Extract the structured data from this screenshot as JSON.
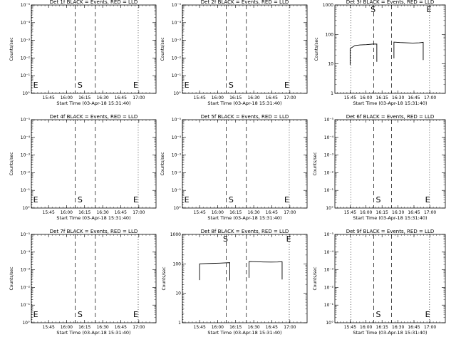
{
  "chart_data": [
    {
      "type": "line",
      "title": "Det 1f BLACK = Events, RED = LLD",
      "xlabel": "Start Time (03-Apr-18 15:31:40)",
      "ylabel": "Counts/sec",
      "scale": "log-small",
      "yticks": [
        "10°",
        "10⁻¹",
        "10⁻²",
        "10⁻³",
        "10⁻⁴",
        "10⁻⁵"
      ],
      "xticks": [
        "15:45",
        "16:00",
        "16:15",
        "16:30",
        "16:45",
        "17:00"
      ],
      "markers": [
        "E",
        "S",
        "E"
      ],
      "series": []
    },
    {
      "type": "line",
      "title": "Det 2f BLACK = Events, RED = LLD",
      "xlabel": "Start Time (03-Apr-18 15:31:40)",
      "ylabel": "Counts/sec",
      "scale": "log-small",
      "yticks": [
        "10°",
        "10⁻¹",
        "10⁻²",
        "10⁻³",
        "10⁻⁴",
        "10⁻⁵"
      ],
      "xticks": [
        "15:45",
        "16:00",
        "16:15",
        "16:30",
        "16:45",
        "17:00"
      ],
      "markers": [
        "E",
        "S",
        "E"
      ],
      "series": []
    },
    {
      "type": "line",
      "title": "Det 3f BLACK = Events, RED = LLD",
      "xlabel": "Start Time (03-Apr-18 15:31:40)",
      "ylabel": "Counts/sec",
      "scale": "log-large",
      "yticks": [
        "1",
        "10",
        "100",
        "1000"
      ],
      "xticks": [
        "15:45",
        "16:00",
        "16:15",
        "16:30",
        "16:45",
        "17:00"
      ],
      "markers": [
        "S",
        "E"
      ],
      "series": [
        {
          "segments": [
            [
              [
                0.28,
                33
              ],
              [
                0.58,
                42
              ],
              [
                0.9,
                44
              ],
              [
                1.3,
                45
              ],
              [
                1.7,
                47
              ],
              [
                1.95,
                47
              ]
            ],
            [
              [
                3.02,
                55
              ],
              [
                3.4,
                53
              ],
              [
                3.8,
                52
              ],
              [
                4.2,
                51
              ],
              [
                4.6,
                52
              ],
              [
                4.85,
                54
              ]
            ]
          ],
          "values": []
        }
      ]
    },
    {
      "type": "line",
      "title": "Det 4f BLACK = Events, RED = LLD",
      "xlabel": "Start Time (03-Apr-18 15:31:40)",
      "ylabel": "Counts/sec",
      "scale": "log-small",
      "yticks": [
        "10°",
        "10⁻¹",
        "10⁻²",
        "10⁻³",
        "10⁻⁴",
        "10⁻⁵"
      ],
      "xticks": [
        "15:45",
        "16:00",
        "16:15",
        "16:30",
        "16:45",
        "17:00"
      ],
      "markers": [
        "E",
        "S",
        "E"
      ],
      "series": []
    },
    {
      "type": "line",
      "title": "Det 5f BLACK = Events, RED = LLD",
      "xlabel": "Start Time (03-Apr-18 15:31:40)",
      "ylabel": "Counts/sec",
      "scale": "log-small",
      "yticks": [
        "10°",
        "10⁻¹",
        "10⁻²",
        "10⁻³",
        "10⁻⁴",
        "10⁻⁵"
      ],
      "xticks": [
        "15:45",
        "16:00",
        "16:15",
        "16:30",
        "16:45",
        "17:00"
      ],
      "markers": [
        "E",
        "S",
        "E"
      ],
      "series": []
    },
    {
      "type": "line",
      "title": "Det 6f BLACK = Events, RED = LLD",
      "xlabel": "Start Time (03-Apr-18 15:31:40)",
      "ylabel": "Counts/sec",
      "scale": "log-small",
      "yticks": [
        "10°",
        "10⁻¹",
        "10⁻²",
        "10⁻³",
        "10⁻⁴",
        "10⁻⁵"
      ],
      "xticks": [
        "15:45",
        "16:00",
        "16:15",
        "16:30",
        "16:45",
        "17:00"
      ],
      "markers": [
        "S",
        "E"
      ],
      "series": []
    },
    {
      "type": "line",
      "title": "Det 7f BLACK = Events, RED = LLD",
      "xlabel": "Start Time (03-Apr-18 15:31:40)",
      "ylabel": "Counts/sec",
      "scale": "log-small",
      "yticks": [
        "10°",
        "10⁻¹",
        "10⁻²",
        "10⁻³",
        "10⁻⁴",
        "10⁻⁵"
      ],
      "xticks": [
        "15:45",
        "16:00",
        "16:15",
        "16:30",
        "16:45",
        "17:00"
      ],
      "markers": [
        "E",
        "S",
        "E"
      ],
      "series": []
    },
    {
      "type": "line",
      "title": "Det 8f BLACK = Events, RED = LLD",
      "xlabel": "Start Time (03-Apr-18 15:31:40)",
      "ylabel": "Counts/sec",
      "scale": "log-large",
      "yticks": [
        "1",
        "10",
        "100",
        "1000"
      ],
      "xticks": [
        "15:45",
        "16:00",
        "16:15",
        "16:30",
        "16:45",
        "17:00"
      ],
      "markers": [
        "S",
        "E"
      ],
      "series": [
        {
          "segments": [
            [
              [
                0.28,
                100
              ],
              [
                0.6,
                102
              ],
              [
                1.0,
                104
              ],
              [
                1.4,
                106
              ],
              [
                1.7,
                108
              ],
              [
                1.95,
                110
              ]
            ],
            [
              [
                3.02,
                120
              ],
              [
                3.4,
                118
              ],
              [
                3.8,
                116
              ],
              [
                4.2,
                115
              ],
              [
                4.6,
                116
              ],
              [
                4.85,
                118
              ]
            ]
          ],
          "values": []
        }
      ]
    },
    {
      "type": "line",
      "title": "Det 9f BLACK = Events, RED = LLD",
      "xlabel": "Start Time (03-Apr-18 15:31:40)",
      "ylabel": "Counts/sec",
      "scale": "log-small",
      "yticks": [
        "10°",
        "10⁻¹",
        "10⁻²",
        "10⁻³",
        "10⁻⁴",
        "10⁻⁵"
      ],
      "xticks": [
        "15:45",
        "16:00",
        "16:15",
        "16:30",
        "16:45",
        "17:00"
      ],
      "markers": [
        "S",
        "E"
      ],
      "series": []
    }
  ]
}
